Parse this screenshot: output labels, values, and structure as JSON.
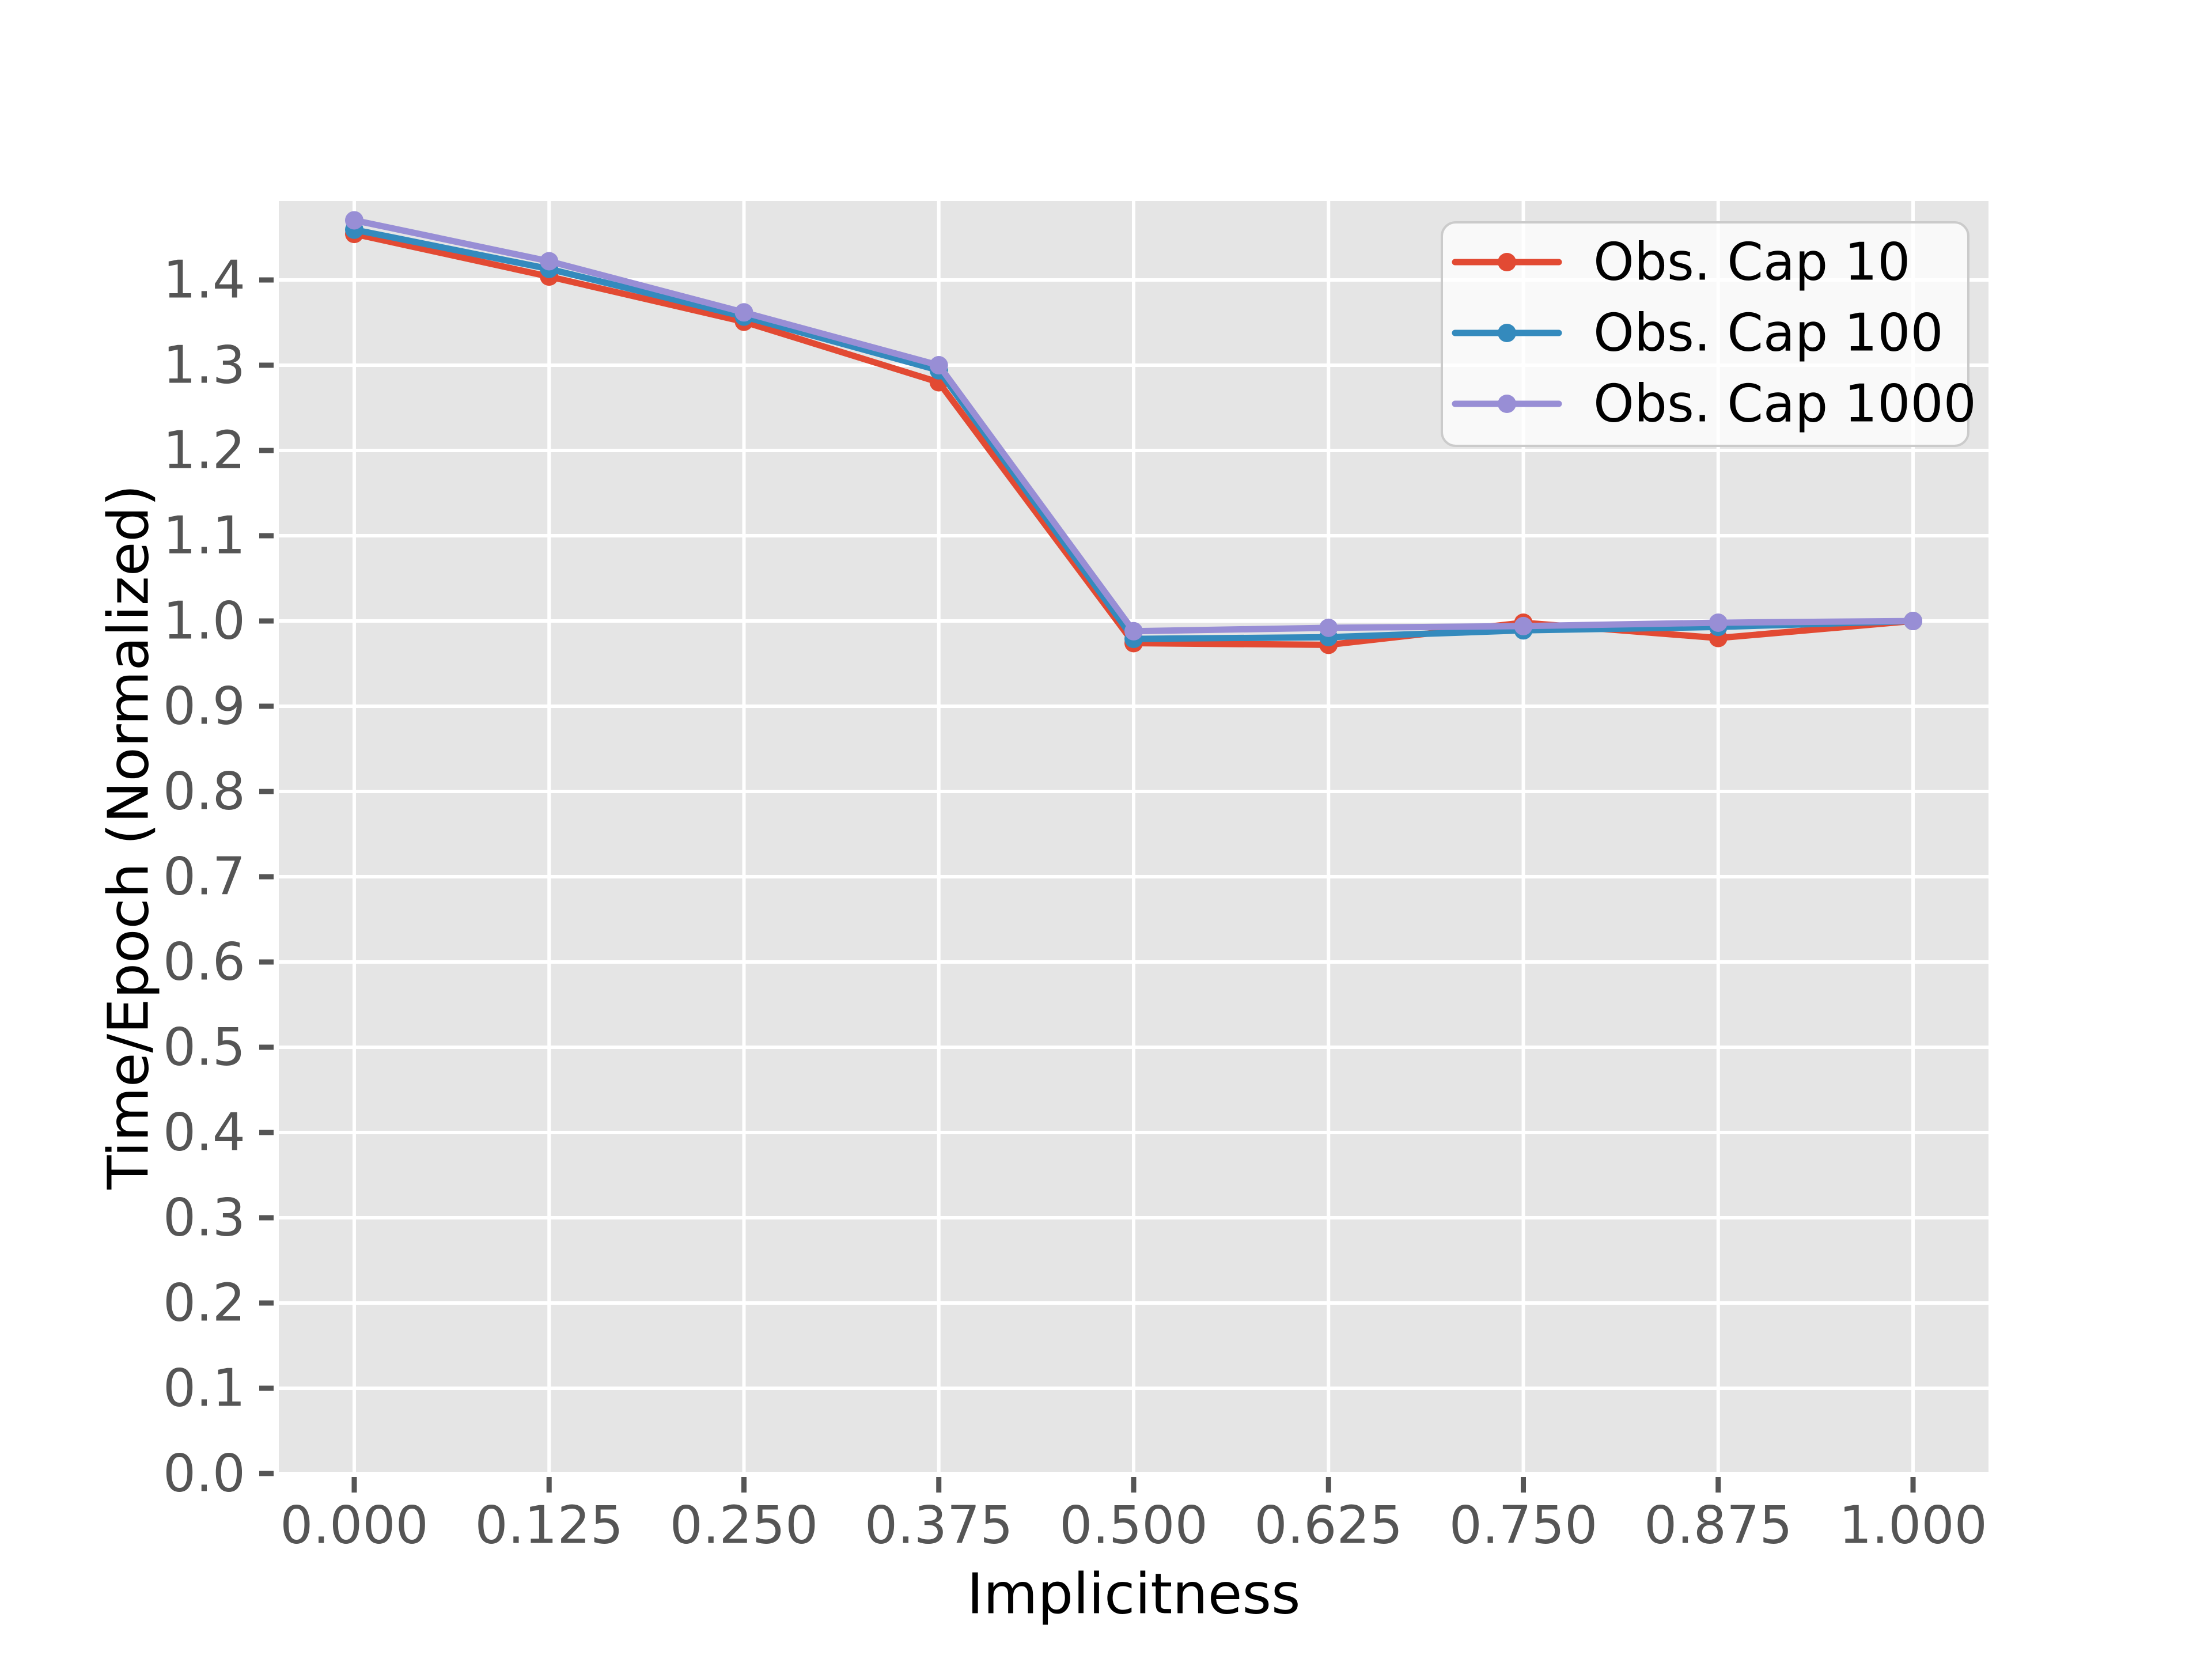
{
  "chart_data": {
    "type": "line",
    "title": "",
    "xlabel": "Implicitness",
    "ylabel": "Time/Epoch (Normalized)",
    "x": [
      0.0,
      0.125,
      0.25,
      0.375,
      0.5,
      0.625,
      0.75,
      0.875,
      1.0
    ],
    "x_tick_labels": [
      "0.000",
      "0.125",
      "0.250",
      "0.375",
      "0.500",
      "0.625",
      "0.750",
      "0.875",
      "1.000"
    ],
    "y_ticks": [
      0.0,
      0.1,
      0.2,
      0.3,
      0.4,
      0.5,
      0.6,
      0.7,
      0.8,
      0.9,
      1.0,
      1.1,
      1.2,
      1.3,
      1.4
    ],
    "y_tick_labels": [
      "0.0",
      "0.1",
      "0.2",
      "0.3",
      "0.4",
      "0.5",
      "0.6",
      "0.7",
      "0.8",
      "0.9",
      "1.0",
      "1.1",
      "1.2",
      "1.3",
      "1.4"
    ],
    "xlim": [
      -0.0484,
      1.0484
    ],
    "ylim": [
      0.0,
      1.4926
    ],
    "grid": true,
    "legend_position": "upper right",
    "series": [
      {
        "name": "Obs. Cap 10",
        "color": "#E24A33",
        "values": [
          1.454,
          1.404,
          1.351,
          1.28,
          0.974,
          0.972,
          0.998,
          0.98,
          1.0
        ]
      },
      {
        "name": "Obs. Cap 100",
        "color": "#348ABD",
        "values": [
          1.459,
          1.413,
          1.357,
          1.294,
          0.979,
          0.981,
          0.989,
          0.993,
          1.0
        ]
      },
      {
        "name": "Obs. Cap 1000",
        "color": "#988ED5",
        "values": [
          1.47,
          1.422,
          1.362,
          1.3,
          0.988,
          0.992,
          0.994,
          0.998,
          1.0
        ]
      }
    ],
    "colors": {
      "plot_background": "#E5E5E5",
      "figure_background": "#FFFFFF",
      "gridline": "#FFFFFF",
      "tick": "#555555",
      "tick_label": "#555555",
      "axis_label": "#000000",
      "legend_face": "rgba(255,255,255,0.78)",
      "legend_border": "#CBCBCB",
      "legend_text": "#000000"
    }
  }
}
